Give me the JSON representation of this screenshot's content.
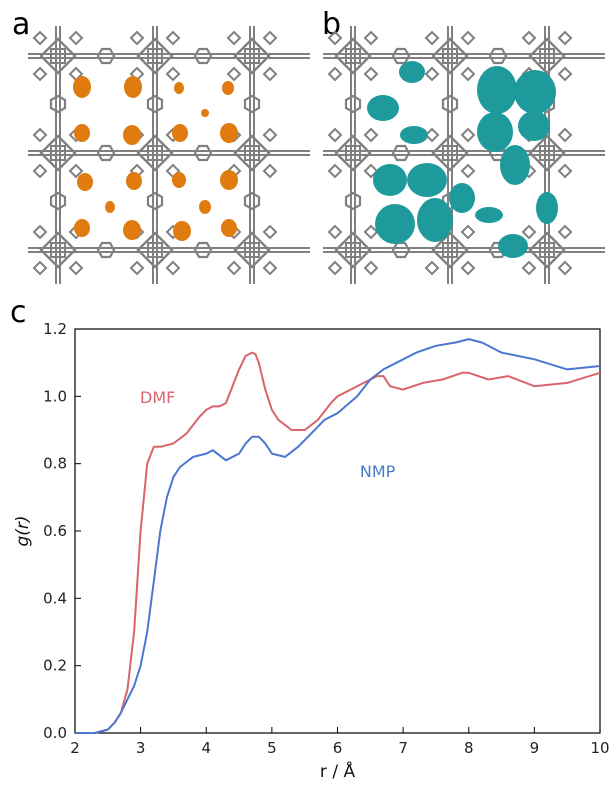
{
  "panels": {
    "a": "a",
    "b": "b",
    "c": "c"
  },
  "colors": {
    "dmf": "#d9646b",
    "nmp": "#4a78d0",
    "density_a": "#e07b10",
    "density_b": "#1f9a9c",
    "framework": "#808080"
  },
  "chart_data": {
    "type": "line",
    "xlabel": "r / Å",
    "ylabel": "g(r)",
    "xlim": [
      2,
      10
    ],
    "ylim": [
      0,
      1.2
    ],
    "x_ticks": [
      "2",
      "3",
      "4",
      "5",
      "6",
      "7",
      "8",
      "9",
      "10"
    ],
    "y_ticks": [
      "0.0",
      "0.2",
      "0.4",
      "0.6",
      "0.8",
      "1.0",
      "1.2"
    ],
    "grid": false,
    "series": [
      {
        "name": "DMF",
        "color": "#d9646b",
        "x": [
          2.0,
          2.3,
          2.5,
          2.6,
          2.7,
          2.8,
          2.9,
          3.0,
          3.1,
          3.2,
          3.3,
          3.5,
          3.7,
          3.9,
          4.0,
          4.1,
          4.2,
          4.3,
          4.4,
          4.5,
          4.6,
          4.7,
          4.75,
          4.8,
          4.9,
          5.0,
          5.1,
          5.3,
          5.5,
          5.7,
          5.9,
          6.0,
          6.2,
          6.4,
          6.6,
          6.7,
          6.8,
          7.0,
          7.3,
          7.6,
          7.9,
          8.0,
          8.3,
          8.6,
          9.0,
          9.5,
          10.0
        ],
        "y": [
          0.0,
          0.0,
          0.01,
          0.03,
          0.06,
          0.13,
          0.3,
          0.6,
          0.8,
          0.85,
          0.85,
          0.86,
          0.89,
          0.94,
          0.96,
          0.97,
          0.97,
          0.98,
          1.03,
          1.08,
          1.12,
          1.13,
          1.125,
          1.1,
          1.02,
          0.96,
          0.93,
          0.9,
          0.9,
          0.93,
          0.98,
          1.0,
          1.02,
          1.04,
          1.06,
          1.06,
          1.03,
          1.02,
          1.04,
          1.05,
          1.07,
          1.07,
          1.05,
          1.06,
          1.03,
          1.04,
          1.07
        ]
      },
      {
        "name": "NMP",
        "color": "#4a78d0",
        "x": [
          2.0,
          2.3,
          2.5,
          2.6,
          2.7,
          2.8,
          2.9,
          3.0,
          3.1,
          3.2,
          3.3,
          3.4,
          3.5,
          3.6,
          3.8,
          4.0,
          4.1,
          4.3,
          4.5,
          4.6,
          4.7,
          4.8,
          4.9,
          5.0,
          5.2,
          5.4,
          5.6,
          5.8,
          6.0,
          6.3,
          6.5,
          6.7,
          6.9,
          7.2,
          7.5,
          7.8,
          8.0,
          8.2,
          8.5,
          9.0,
          9.5,
          10.0
        ],
        "y": [
          0.0,
          0.0,
          0.01,
          0.03,
          0.06,
          0.1,
          0.14,
          0.2,
          0.3,
          0.45,
          0.6,
          0.7,
          0.76,
          0.79,
          0.82,
          0.83,
          0.84,
          0.81,
          0.83,
          0.86,
          0.88,
          0.88,
          0.86,
          0.83,
          0.82,
          0.85,
          0.89,
          0.93,
          0.95,
          1.0,
          1.05,
          1.08,
          1.1,
          1.13,
          1.15,
          1.16,
          1.17,
          1.16,
          1.13,
          1.11,
          1.08,
          1.09
        ]
      }
    ],
    "annotations": [
      {
        "text": "DMF",
        "x": 2.0,
        "y": 0.98,
        "color": "#d9646b"
      },
      {
        "text": "NMP",
        "x": 5.35,
        "y": 0.76,
        "color": "#4a78d0"
      }
    ]
  }
}
